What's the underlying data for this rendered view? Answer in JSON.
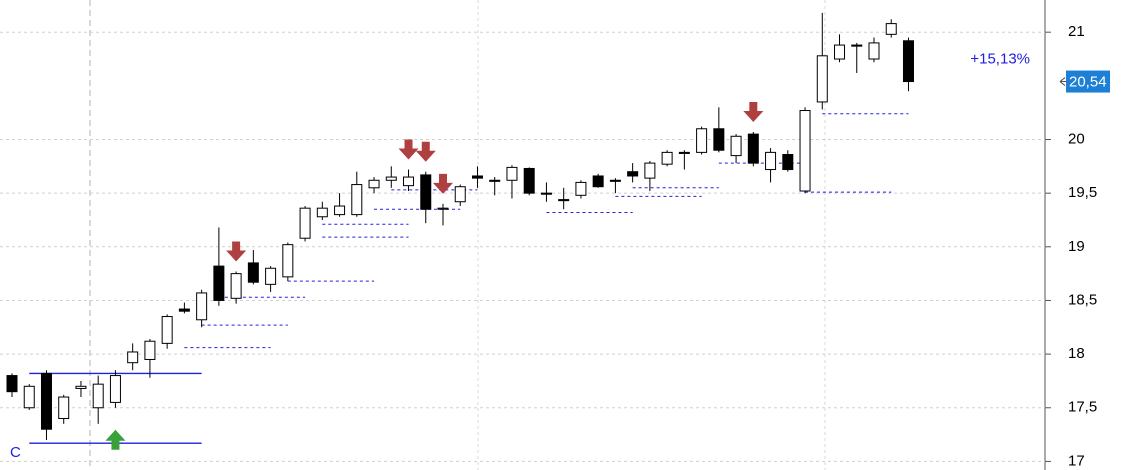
{
  "chart_data": {
    "type": "candlestick",
    "open": [
      17.8,
      17.5,
      17.82,
      17.4,
      17.68,
      17.5,
      17.55,
      17.92,
      17.95,
      18.1,
      18.42,
      18.32,
      18.82,
      18.52,
      18.85,
      18.65,
      18.72,
      19.08,
      19.28,
      19.3,
      19.3,
      19.55,
      19.62,
      19.57,
      19.67,
      19.35,
      19.42,
      19.66,
      19.62,
      19.62,
      19.73,
      19.5,
      19.44,
      19.48,
      19.66,
      19.62,
      19.7,
      19.64,
      19.77,
      19.88,
      19.88,
      20.1,
      19.85,
      20.05,
      19.72,
      19.86,
      19.52,
      20.35,
      20.75,
      20.88,
      20.75,
      20.98,
      20.92
    ],
    "high": [
      17.82,
      17.72,
      17.85,
      17.62,
      17.75,
      17.8,
      17.85,
      18.1,
      18.14,
      18.37,
      18.48,
      18.6,
      19.18,
      18.77,
      18.97,
      18.82,
      19.04,
      19.38,
      19.42,
      19.5,
      19.7,
      19.65,
      19.75,
      19.72,
      19.7,
      19.4,
      19.58,
      19.75,
      19.65,
      19.76,
      19.74,
      19.6,
      19.55,
      19.62,
      19.68,
      19.64,
      19.78,
      19.8,
      19.9,
      19.9,
      20.12,
      20.3,
      20.05,
      20.07,
      19.92,
      19.9,
      20.3,
      21.18,
      20.98,
      20.9,
      20.95,
      21.12,
      20.95
    ],
    "low": [
      17.6,
      17.48,
      17.2,
      17.35,
      17.6,
      17.35,
      17.5,
      17.85,
      17.78,
      18.05,
      18.38,
      18.25,
      18.45,
      18.47,
      18.65,
      18.58,
      18.68,
      19.05,
      19.25,
      19.28,
      19.28,
      19.5,
      19.55,
      19.52,
      19.22,
      19.2,
      19.38,
      19.55,
      19.48,
      19.45,
      19.48,
      19.42,
      19.35,
      19.45,
      19.55,
      19.5,
      19.6,
      19.52,
      19.75,
      19.72,
      19.86,
      19.88,
      19.78,
      19.75,
      19.6,
      19.7,
      19.5,
      20.28,
      20.72,
      20.62,
      20.72,
      20.95,
      20.45
    ],
    "close": [
      17.65,
      17.7,
      17.3,
      17.6,
      17.7,
      17.72,
      17.8,
      18.02,
      18.12,
      18.35,
      18.4,
      18.57,
      18.5,
      18.75,
      18.67,
      18.8,
      19.02,
      19.36,
      19.36,
      19.38,
      19.58,
      19.62,
      19.65,
      19.65,
      19.35,
      19.36,
      19.56,
      19.64,
      19.61,
      19.74,
      19.5,
      19.49,
      19.43,
      19.6,
      19.56,
      19.61,
      19.66,
      19.78,
      19.88,
      19.87,
      20.1,
      19.9,
      20.03,
      19.78,
      19.88,
      19.72,
      20.27,
      20.78,
      20.88,
      20.87,
      20.9,
      21.08,
      20.54
    ],
    "up_color": "#ffffff",
    "down_color": "#000000",
    "ylim": [
      16.92,
      21.3
    ],
    "yticks": [
      {
        "value": 17,
        "label": "17"
      },
      {
        "value": 17.5,
        "label": "17,5"
      },
      {
        "value": 18,
        "label": "18"
      },
      {
        "value": 18.5,
        "label": "18,5"
      },
      {
        "value": 19,
        "label": "19"
      },
      {
        "value": 19.5,
        "label": "19,5"
      },
      {
        "value": 20,
        "label": "20"
      },
      {
        "value": 21,
        "label": "21"
      }
    ],
    "grid": true,
    "last_price": {
      "value": 20.54,
      "label": "20,54"
    },
    "change_label": "+15,13%",
    "channel_label": "C",
    "channel": [
      {
        "value": 17.82,
        "from": 1,
        "to": 11
      },
      {
        "value": 17.17,
        "from": 1,
        "to": 11
      }
    ],
    "levels": [
      {
        "value": 18.06,
        "from": 10,
        "to": 15
      },
      {
        "value": 18.27,
        "from": 11,
        "to": 16
      },
      {
        "value": 18.53,
        "from": 12,
        "to": 17
      },
      {
        "value": 18.68,
        "from": 16,
        "to": 21
      },
      {
        "value": 19.09,
        "from": 18,
        "to": 23
      },
      {
        "value": 19.21,
        "from": 18,
        "to": 23
      },
      {
        "value": 19.35,
        "from": 21,
        "to": 26
      },
      {
        "value": 19.53,
        "from": 22,
        "to": 27
      },
      {
        "value": 19.32,
        "from": 31,
        "to": 36
      },
      {
        "value": 19.47,
        "from": 35,
        "to": 40
      },
      {
        "value": 19.55,
        "from": 36,
        "to": 41
      },
      {
        "value": 19.78,
        "from": 41,
        "to": 46
      },
      {
        "value": 19.51,
        "from": 46,
        "to": 51
      },
      {
        "value": 20.24,
        "from": 47,
        "to": 52
      }
    ],
    "signals": [
      {
        "index": 6,
        "kind": "buy"
      },
      {
        "index": 13,
        "kind": "sell"
      },
      {
        "index": 23,
        "kind": "sell"
      },
      {
        "index": 24,
        "kind": "sell"
      },
      {
        "index": 25,
        "kind": "sell"
      },
      {
        "index": 43,
        "kind": "sell"
      }
    ]
  }
}
